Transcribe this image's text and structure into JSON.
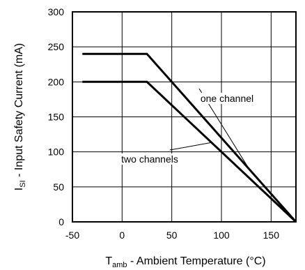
{
  "chart_data": {
    "type": "line",
    "xlabel": {
      "main": "T",
      "sub": "amb",
      "rest": " - Ambient Temperature (°C)"
    },
    "ylabel": {
      "main": "I",
      "sub": "SI",
      "rest": " - Input Safety Current (mA)"
    },
    "xlim": [
      -50,
      175
    ],
    "ylim": [
      0,
      300
    ],
    "xticks": [
      -50,
      0,
      50,
      100,
      150
    ],
    "yticks": [
      0,
      50,
      100,
      150,
      200,
      250,
      300
    ],
    "grid": true,
    "series": [
      {
        "name": "one channel",
        "x": [
          -40,
          25,
          175
        ],
        "y": [
          240,
          240,
          0
        ]
      },
      {
        "name": "two channels",
        "x": [
          -40,
          25,
          175
        ],
        "y": [
          200,
          200,
          0
        ]
      }
    ],
    "annotations": [
      {
        "text": "one channel",
        "series": "one channel"
      },
      {
        "text": "two channels",
        "series": "two channels"
      }
    ]
  }
}
